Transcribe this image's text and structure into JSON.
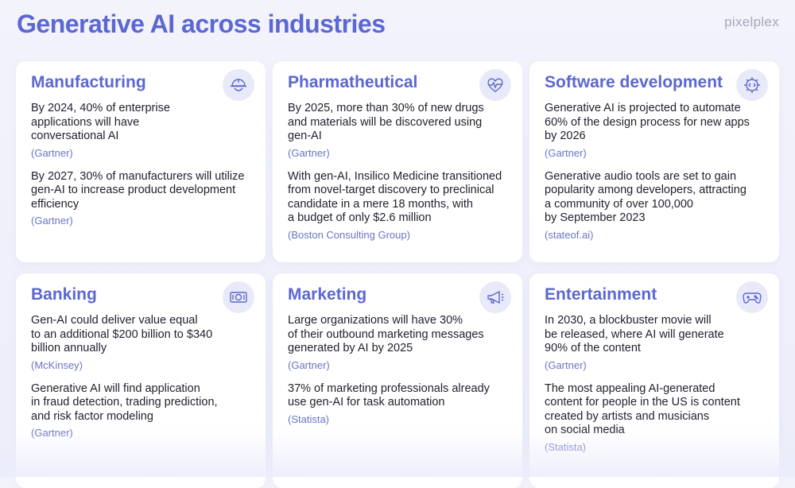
{
  "header": {
    "title": "Generative AI across industries",
    "brand": "pixelplex"
  },
  "cards": [
    {
      "title": "Manufacturing",
      "icon": "worker-helmet-icon",
      "items": [
        {
          "text": "By 2024, 40% of enterprise\napplications will have\nconversational AI",
          "source": "(Gartner)"
        },
        {
          "text": "By 2027, 30% of manufacturers will utilize\ngen-AI to increase product development\nefficiency",
          "source": "(Gartner)"
        }
      ]
    },
    {
      "title": "Pharmatheutical",
      "icon": "heart-pulse-icon",
      "items": [
        {
          "text": "By 2025, more than 30% of new drugs\nand materials will be discovered using\ngen-AI",
          "source": "(Gartner)"
        },
        {
          "text": "With gen-AI, Insilico Medicine transitioned\nfrom novel-target discovery to preclinical\ncandidate in a mere 18 months, with\na budget of only $2.6 million",
          "source": "(Boston Consulting Group)"
        }
      ]
    },
    {
      "title": "Software development",
      "icon": "code-gear-icon",
      "items": [
        {
          "text": "Generative AI is projected to automate\n60% of the design process for new apps\nby 2026",
          "source": "(Gartner)"
        },
        {
          "text": "Generative audio tools are set to gain\npopularity among developers, attracting\na community of over 100,000\nby September 2023",
          "source": "(stateof.ai)"
        }
      ]
    },
    {
      "title": "Banking",
      "icon": "banknote-icon",
      "items": [
        {
          "text": "Gen-AI could deliver value equal\nto an additional $200 billion to $340\nbillion annually",
          "source": "(McKinsey)"
        },
        {
          "text": "Generative AI will find application\nin fraud detection, trading prediction,\nand risk factor modeling",
          "source": "(Gartner)"
        }
      ]
    },
    {
      "title": "Marketing",
      "icon": "megaphone-icon",
      "items": [
        {
          "text": "Large organizations will have 30%\nof their outbound marketing messages\ngenerated by AI by 2025",
          "source": "(Gartner)"
        },
        {
          "text": "37% of marketing professionals already\nuse gen-AI for task automation",
          "source": "(Statista)"
        }
      ]
    },
    {
      "title": "Entertainment",
      "icon": "gamepad-icon",
      "items": [
        {
          "text": "In 2030, a blockbuster movie will\nbe released, where AI will generate\n90% of the content",
          "source": "(Gartner)"
        },
        {
          "text": "The most appealing AI-generated\ncontent for people in the US is content\ncreated by artists and musicians\non social media",
          "source": "(Statista)"
        }
      ]
    }
  ],
  "colors": {
    "accent": "#5b67d2",
    "source": "#6a74c4",
    "icon_bg": "#e9eaf9"
  }
}
